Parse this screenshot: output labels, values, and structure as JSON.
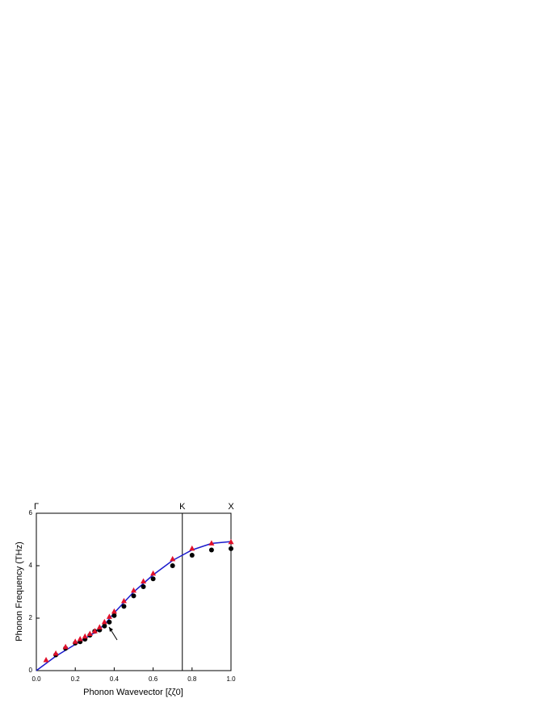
{
  "chart_data": {
    "type": "scatter",
    "xlabel": "Phonon Wavevector [ζζ0]",
    "ylabel": "Phonon Frequency (THz)",
    "xlim": [
      0,
      1
    ],
    "ylim": [
      0,
      6
    ],
    "xticks": [
      {
        "value": 0,
        "label": "0.0"
      },
      {
        "value": 0.2,
        "label": "0.2"
      },
      {
        "value": 0.4,
        "label": "0.4"
      },
      {
        "value": 0.6,
        "label": "0.6"
      },
      {
        "value": 0.8,
        "label": "0.8"
      },
      {
        "value": 1,
        "label": "1.0"
      }
    ],
    "yticks": [
      0,
      2,
      4,
      6
    ],
    "annotations": [
      {
        "text": "Γ",
        "x": 0
      },
      {
        "text": "K",
        "x": 0.75
      },
      {
        "text": "X",
        "x": 1
      }
    ],
    "series": [
      {
        "marker": "circle",
        "color": "#000000",
        "x": [
          0.1,
          0.15,
          0.2,
          0.225,
          0.25,
          0.275,
          0.3,
          0.325,
          0.35,
          0.375,
          0.4,
          0.45,
          0.5,
          0.55,
          0.6,
          0.7,
          0.8,
          0.9,
          1
        ],
        "values": [
          0.6,
          0.85,
          1.05,
          1.1,
          1.2,
          1.35,
          1.5,
          1.55,
          1.7,
          1.85,
          2.1,
          2.45,
          2.85,
          3.2,
          3.5,
          4,
          4.4,
          4.6,
          4.65
        ]
      },
      {
        "marker": "triangle",
        "color": "#e0102a",
        "x": [
          0.05,
          0.1,
          0.15,
          0.2,
          0.225,
          0.25,
          0.275,
          0.3,
          0.325,
          0.35,
          0.375,
          0.4,
          0.45,
          0.5,
          0.55,
          0.6,
          0.7,
          0.8,
          0.9,
          1
        ],
        "values": [
          0.4,
          0.65,
          0.9,
          1.1,
          1.2,
          1.3,
          1.4,
          1.5,
          1.65,
          1.85,
          2.05,
          2.25,
          2.65,
          3.05,
          3.4,
          3.7,
          4.25,
          4.65,
          4.85,
          4.9
        ]
      },
      {
        "marker": "line",
        "color": "#1a1acc",
        "x": [
          0,
          0.1,
          0.2,
          0.3,
          0.35,
          0.4,
          0.5,
          0.6,
          0.7,
          0.75,
          0.8,
          0.9,
          1
        ],
        "values": [
          0,
          0.55,
          1,
          1.45,
          1.75,
          2.2,
          3,
          3.65,
          4.2,
          4.4,
          4.6,
          4.85,
          4.92
        ]
      }
    ]
  }
}
